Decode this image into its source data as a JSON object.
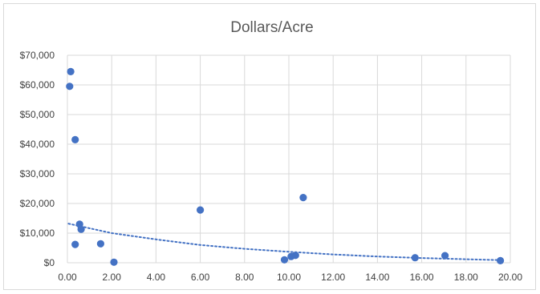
{
  "chart_data": {
    "type": "scatter",
    "title": "Dollars/Acre",
    "xlabel": "",
    "ylabel": "",
    "xlim": [
      0,
      20
    ],
    "ylim": [
      0,
      70000
    ],
    "x_ticks": [
      "0.00",
      "2.00",
      "4.00",
      "6.00",
      "8.00",
      "10.00",
      "12.00",
      "14.00",
      "16.00",
      "18.00",
      "20.00"
    ],
    "y_ticks": [
      "$0",
      "$10,000",
      "$20,000",
      "$30,000",
      "$40,000",
      "$50,000",
      "$60,000",
      "$70,000"
    ],
    "grid": true,
    "marker_color": "#4472c4",
    "trendline": {
      "style": "dotted",
      "type": "exponential",
      "color": "#4472c4",
      "points": [
        [
          0.05,
          13200
        ],
        [
          2,
          10000
        ],
        [
          4,
          7900
        ],
        [
          6,
          6000
        ],
        [
          8,
          4700
        ],
        [
          10,
          3700
        ],
        [
          12,
          2800
        ],
        [
          14,
          2100
        ],
        [
          16,
          1600
        ],
        [
          18,
          1200
        ],
        [
          19.6,
          900
        ]
      ]
    },
    "points": [
      {
        "x": 0.15,
        "y": 64500
      },
      {
        "x": 0.1,
        "y": 59500
      },
      {
        "x": 0.35,
        "y": 41500
      },
      {
        "x": 0.55,
        "y": 13000
      },
      {
        "x": 0.62,
        "y": 11300
      },
      {
        "x": 0.35,
        "y": 6200
      },
      {
        "x": 1.5,
        "y": 6400
      },
      {
        "x": 2.1,
        "y": 200
      },
      {
        "x": 6.0,
        "y": 17800
      },
      {
        "x": 9.8,
        "y": 1000
      },
      {
        "x": 10.1,
        "y": 2100
      },
      {
        "x": 10.3,
        "y": 2500
      },
      {
        "x": 10.65,
        "y": 22000
      },
      {
        "x": 15.7,
        "y": 1700
      },
      {
        "x": 17.05,
        "y": 2400
      },
      {
        "x": 19.55,
        "y": 700
      }
    ]
  }
}
